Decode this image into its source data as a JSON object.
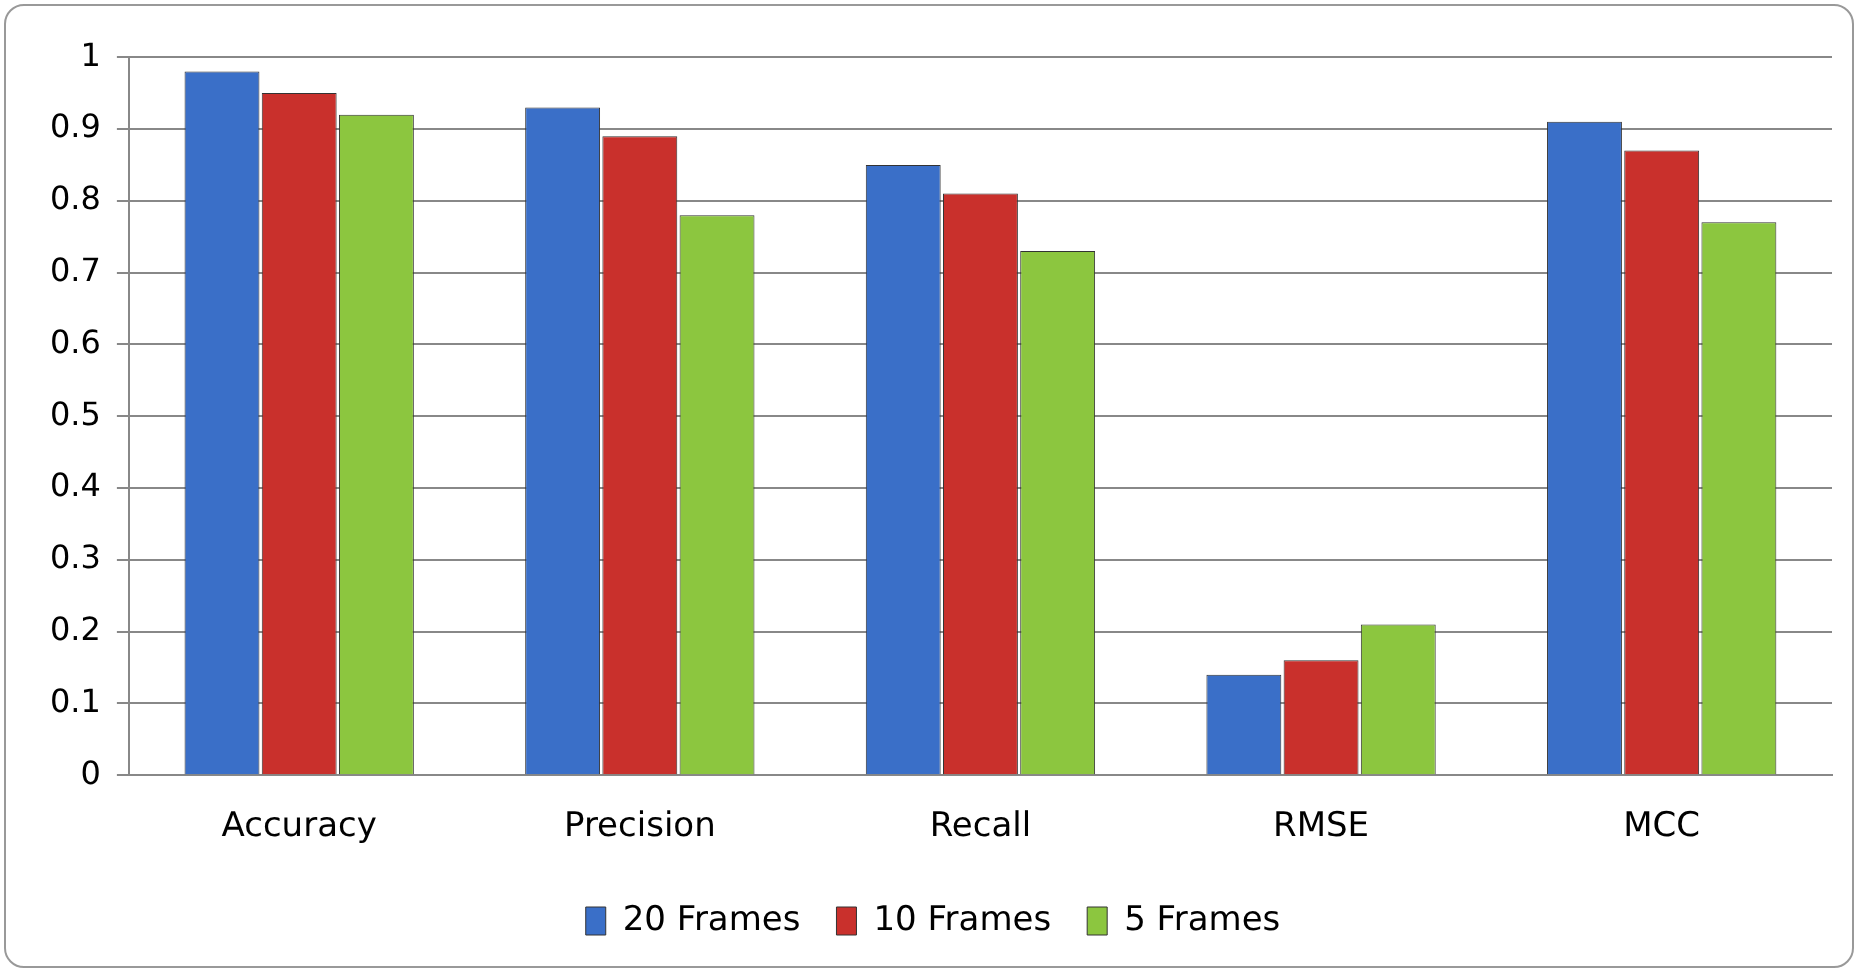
{
  "chart_data": {
    "type": "bar",
    "categories": [
      "Accuracy",
      "Precision",
      "Recall",
      "RMSE",
      "MCC"
    ],
    "series": [
      {
        "name": "20 Frames",
        "color": "#3a6fc8",
        "values": [
          0.98,
          0.93,
          0.85,
          0.14,
          0.91
        ]
      },
      {
        "name": "10 Frames",
        "color": "#c9302c",
        "values": [
          0.95,
          0.89,
          0.81,
          0.16,
          0.87
        ]
      },
      {
        "name": "5 Frames",
        "color": "#8cc63f",
        "values": [
          0.92,
          0.78,
          0.73,
          0.21,
          0.77
        ]
      }
    ],
    "ylim": [
      0,
      1
    ],
    "yticks": [
      0,
      0.1,
      0.2,
      0.3,
      0.4,
      0.5,
      0.6,
      0.7,
      0.8,
      0.9,
      1
    ],
    "grid": "y",
    "legend": "bottom"
  }
}
